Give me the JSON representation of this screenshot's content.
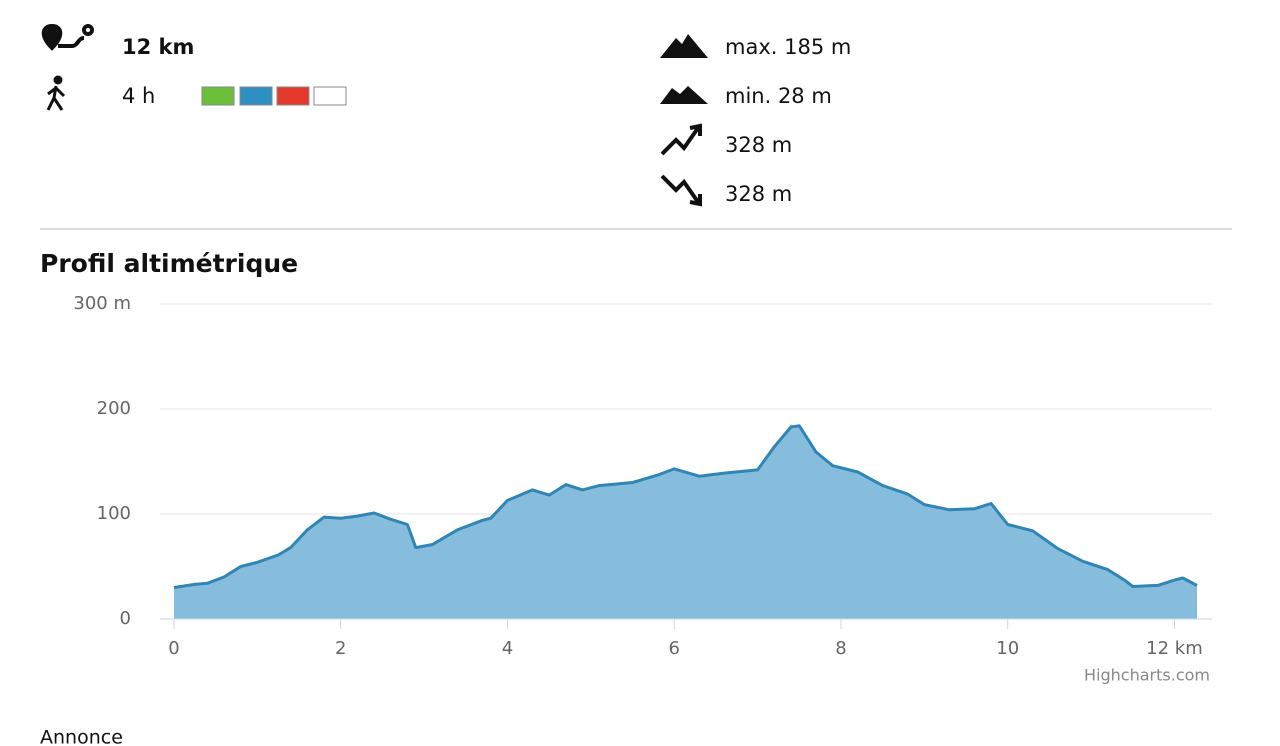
{
  "header": {
    "distance": "12 km",
    "duration": "4 h",
    "max": "max. 185 m",
    "min": "min. 28 m",
    "ascent": "328 m",
    "descent": "328 m"
  },
  "chart_data": {
    "type": "area",
    "title": "Profil altimétrique",
    "x": [
      0,
      0.25,
      0.4,
      0.6,
      0.8,
      1.0,
      1.25,
      1.4,
      1.6,
      1.8,
      2.0,
      2.2,
      2.4,
      2.6,
      2.8,
      2.9,
      3.1,
      3.4,
      3.6,
      3.7,
      3.8,
      4.0,
      4.3,
      4.5,
      4.7,
      4.9,
      5.1,
      5.5,
      5.8,
      6.0,
      6.3,
      6.6,
      7.0,
      7.2,
      7.4,
      7.5,
      7.7,
      7.9,
      8.2,
      8.5,
      8.8,
      9.0,
      9.3,
      9.6,
      9.8,
      10.0,
      10.3,
      10.6,
      10.9,
      11.2,
      11.4,
      11.5,
      11.8,
      12.0,
      12.1,
      12.27
    ],
    "values": [
      30,
      33,
      34,
      40,
      50,
      54,
      61,
      68,
      85,
      97,
      96,
      98,
      101,
      95,
      90,
      68,
      71,
      85,
      91,
      94,
      96,
      113,
      123,
      118,
      128,
      123,
      127,
      130,
      137,
      143,
      136,
      139,
      142,
      164,
      183,
      184,
      159,
      146,
      140,
      127,
      119,
      109,
      104,
      105,
      110,
      90,
      84,
      67,
      55,
      47,
      37,
      31,
      32,
      37,
      39,
      32
    ],
    "color": "#86bddc",
    "line_color": "#2f86b6",
    "xlim": [
      0,
      12.45
    ],
    "ylim": [
      0,
      300
    ],
    "xticks": [
      0,
      2,
      4,
      6,
      8,
      10,
      {
        "value": 12,
        "label": "12 km"
      }
    ],
    "yticks": [
      0,
      100,
      200,
      {
        "value": 300,
        "label": "300 m"
      }
    ],
    "grid": true,
    "credits": "Highcharts.com"
  },
  "footer": {
    "label": "Annonce"
  }
}
